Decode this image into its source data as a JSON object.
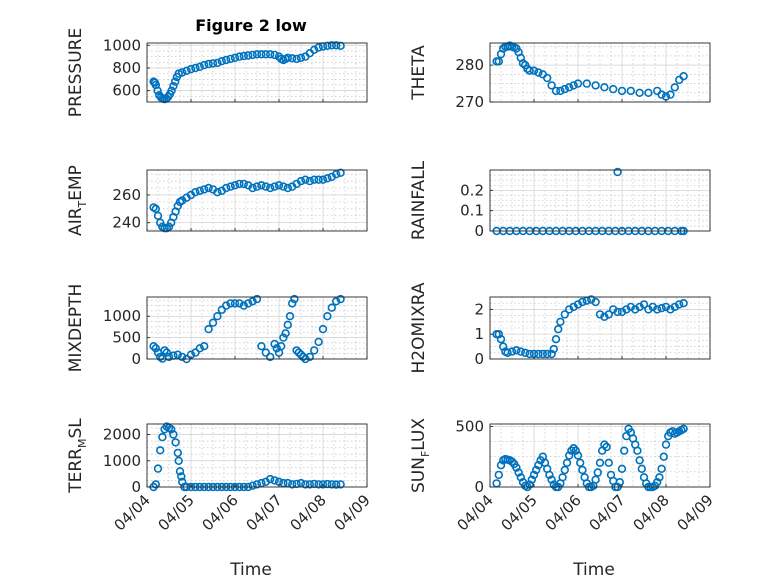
{
  "figure": {
    "title": "Figure 2 low",
    "xlabel": "Time",
    "marker_color": "#0072bd",
    "x_tick_labels": [
      "04/04",
      "04/05",
      "04/06",
      "04/07",
      "04/08",
      "04/09"
    ]
  },
  "chart_data": [
    {
      "type": "scatter",
      "ylabel": "PRESSURE",
      "title": "Figure 2 low",
      "xlim": [
        0,
        5
      ],
      "ylim": [
        500,
        1020
      ],
      "yticks": [
        600,
        800,
        1000
      ],
      "grid": true,
      "x": [
        0.15,
        0.18,
        0.2,
        0.24,
        0.28,
        0.32,
        0.36,
        0.4,
        0.44,
        0.48,
        0.52,
        0.56,
        0.6,
        0.64,
        0.68,
        0.72,
        0.8,
        0.9,
        1.0,
        1.1,
        1.2,
        1.3,
        1.4,
        1.5,
        1.6,
        1.7,
        1.8,
        1.9,
        2.0,
        2.1,
        2.2,
        2.3,
        2.4,
        2.5,
        2.6,
        2.7,
        2.8,
        2.9,
        3.0,
        3.05,
        3.1,
        3.15,
        3.2,
        3.3,
        3.4,
        3.5,
        3.6,
        3.7,
        3.8,
        3.9,
        4.0,
        4.1,
        4.2,
        4.3,
        4.4
      ],
      "y": [
        680,
        670,
        650,
        600,
        560,
        540,
        530,
        525,
        530,
        545,
        570,
        600,
        640,
        680,
        720,
        750,
        760,
        775,
        790,
        800,
        810,
        825,
        835,
        840,
        845,
        860,
        870,
        880,
        890,
        900,
        905,
        910,
        915,
        920,
        920,
        920,
        920,
        915,
        900,
        880,
        870,
        880,
        890,
        885,
        880,
        890,
        900,
        930,
        960,
        980,
        990,
        995,
        1000,
        1000,
        995
      ]
    },
    {
      "type": "scatter",
      "ylabel": "THETA",
      "xlim": [
        0,
        5
      ],
      "ylim": [
        270,
        286
      ],
      "yticks": [
        270,
        280
      ],
      "grid": true,
      "x": [
        0.15,
        0.2,
        0.25,
        0.3,
        0.35,
        0.4,
        0.45,
        0.5,
        0.55,
        0.6,
        0.65,
        0.7,
        0.75,
        0.8,
        0.85,
        0.9,
        1.0,
        1.1,
        1.2,
        1.3,
        1.4,
        1.5,
        1.6,
        1.7,
        1.8,
        1.9,
        2.0,
        2.2,
        2.4,
        2.6,
        2.8,
        3.0,
        3.2,
        3.4,
        3.6,
        3.8,
        3.9,
        4.0,
        4.1,
        4.2,
        4.3,
        4.4
      ],
      "y": [
        281,
        281,
        283,
        284.5,
        285,
        285,
        285.3,
        285,
        284.8,
        284.5,
        283.5,
        282,
        280.5,
        280,
        279,
        278.5,
        278.5,
        278,
        277.5,
        276.5,
        274.5,
        273,
        273,
        273.5,
        274,
        274.5,
        275,
        275,
        274.5,
        274,
        273.5,
        273,
        273,
        272.5,
        272.5,
        273,
        272,
        271.5,
        272,
        274,
        276,
        277
      ]
    },
    {
      "type": "scatter",
      "ylabel": "AIR_TEMP",
      "xlim": [
        0,
        5
      ],
      "ylim": [
        234,
        278
      ],
      "yticks": [
        240,
        260
      ],
      "grid": true,
      "x": [
        0.15,
        0.2,
        0.25,
        0.3,
        0.35,
        0.4,
        0.45,
        0.5,
        0.55,
        0.6,
        0.65,
        0.7,
        0.75,
        0.8,
        0.9,
        1.0,
        1.1,
        1.2,
        1.3,
        1.4,
        1.5,
        1.6,
        1.7,
        1.8,
        1.9,
        2.0,
        2.1,
        2.2,
        2.3,
        2.4,
        2.5,
        2.6,
        2.7,
        2.8,
        2.9,
        3.0,
        3.1,
        3.2,
        3.3,
        3.4,
        3.5,
        3.6,
        3.7,
        3.8,
        3.9,
        4.0,
        4.1,
        4.2,
        4.3,
        4.4
      ],
      "y": [
        251,
        250,
        245,
        240,
        237,
        236,
        236,
        237,
        240,
        244,
        248,
        252,
        255,
        256,
        258,
        260,
        262,
        263,
        264,
        265,
        264,
        262,
        263,
        265,
        266,
        267,
        268,
        268,
        267,
        265,
        266,
        267,
        266,
        265,
        266,
        267,
        266,
        265,
        266,
        268,
        270,
        271,
        270,
        271,
        271,
        271,
        272,
        273,
        275,
        276
      ]
    },
    {
      "type": "scatter",
      "ylabel": "RAINFALL",
      "xlim": [
        0,
        5
      ],
      "ylim": [
        0,
        0.3
      ],
      "yticks": [
        0,
        0.1,
        0.2
      ],
      "grid": true,
      "x": [
        0.15,
        0.3,
        0.45,
        0.6,
        0.75,
        0.9,
        1.05,
        1.2,
        1.35,
        1.5,
        1.65,
        1.8,
        1.95,
        2.1,
        2.25,
        2.4,
        2.55,
        2.7,
        2.85,
        2.9,
        3.0,
        3.15,
        3.3,
        3.45,
        3.6,
        3.75,
        3.9,
        4.05,
        4.2,
        4.35,
        4.4
      ],
      "y": [
        0,
        0,
        0,
        0,
        0,
        0,
        0,
        0,
        0,
        0,
        0,
        0,
        0,
        0,
        0,
        0,
        0,
        0,
        0,
        0.29,
        0,
        0,
        0,
        0,
        0,
        0,
        0,
        0,
        0,
        0,
        0
      ]
    },
    {
      "type": "scatter",
      "ylabel": "MIXDEPTH",
      "xlim": [
        0,
        5
      ],
      "ylim": [
        0,
        1450
      ],
      "yticks": [
        0,
        500,
        1000
      ],
      "grid": true,
      "x": [
        0.15,
        0.2,
        0.25,
        0.3,
        0.35,
        0.4,
        0.45,
        0.5,
        0.6,
        0.7,
        0.8,
        0.9,
        1.0,
        1.1,
        1.2,
        1.3,
        1.4,
        1.5,
        1.6,
        1.7,
        1.8,
        1.9,
        2.0,
        2.1,
        2.2,
        2.3,
        2.4,
        2.5,
        2.6,
        2.7,
        2.8,
        2.9,
        2.95,
        3.0,
        3.05,
        3.1,
        3.15,
        3.2,
        3.25,
        3.3,
        3.35,
        3.4,
        3.45,
        3.5,
        3.55,
        3.6,
        3.7,
        3.8,
        3.9,
        4.0,
        4.1,
        4.2,
        4.3,
        4.4
      ],
      "y": [
        300,
        250,
        150,
        50,
        10,
        200,
        150,
        50,
        80,
        100,
        50,
        0,
        100,
        150,
        250,
        300,
        700,
        850,
        1000,
        1150,
        1250,
        1300,
        1300,
        1300,
        1250,
        1300,
        1350,
        1400,
        300,
        150,
        50,
        350,
        250,
        150,
        300,
        500,
        600,
        800,
        1000,
        1300,
        1400,
        200,
        150,
        100,
        50,
        0,
        50,
        200,
        400,
        700,
        1000,
        1200,
        1350,
        1400
      ]
    },
    {
      "type": "scatter",
      "ylabel": "H2OMIXRA",
      "xlim": [
        0,
        5
      ],
      "ylim": [
        0,
        2.5
      ],
      "yticks": [
        0,
        1,
        2
      ],
      "grid": true,
      "x": [
        0.15,
        0.2,
        0.25,
        0.3,
        0.35,
        0.4,
        0.5,
        0.6,
        0.7,
        0.8,
        0.9,
        1.0,
        1.1,
        1.2,
        1.3,
        1.4,
        1.45,
        1.5,
        1.55,
        1.6,
        1.7,
        1.8,
        1.9,
        2.0,
        2.1,
        2.2,
        2.3,
        2.4,
        2.5,
        2.6,
        2.7,
        2.8,
        2.9,
        3.0,
        3.1,
        3.2,
        3.3,
        3.4,
        3.5,
        3.6,
        3.7,
        3.8,
        3.9,
        4.0,
        4.1,
        4.2,
        4.3,
        4.4
      ],
      "y": [
        1.0,
        1.0,
        0.8,
        0.5,
        0.3,
        0.25,
        0.3,
        0.35,
        0.3,
        0.25,
        0.2,
        0.2,
        0.2,
        0.2,
        0.2,
        0.2,
        0.4,
        0.8,
        1.2,
        1.5,
        1.8,
        2.0,
        2.1,
        2.2,
        2.3,
        2.35,
        2.4,
        2.3,
        1.8,
        1.7,
        1.8,
        2.0,
        1.9,
        1.9,
        2.0,
        2.1,
        2.0,
        2.1,
        2.2,
        2.0,
        2.1,
        2.0,
        2.05,
        2.1,
        2.0,
        2.1,
        2.2,
        2.25
      ]
    },
    {
      "type": "scatter",
      "ylabel": "TERR_MSL",
      "xlim": [
        0,
        5
      ],
      "ylim": [
        0,
        2400
      ],
      "yticks": [
        0,
        1000,
        2000
      ],
      "grid": true,
      "x": [
        0.15,
        0.2,
        0.25,
        0.3,
        0.35,
        0.4,
        0.45,
        0.5,
        0.55,
        0.6,
        0.65,
        0.7,
        0.72,
        0.75,
        0.78,
        0.8,
        0.85,
        0.9,
        1.0,
        1.1,
        1.2,
        1.3,
        1.4,
        1.5,
        1.6,
        1.7,
        1.8,
        1.9,
        2.0,
        2.1,
        2.2,
        2.3,
        2.4,
        2.5,
        2.6,
        2.7,
        2.8,
        2.9,
        3.0,
        3.1,
        3.2,
        3.3,
        3.4,
        3.5,
        3.6,
        3.7,
        3.8,
        3.9,
        4.0,
        4.1,
        4.2,
        4.3,
        4.4
      ],
      "y": [
        0,
        100,
        700,
        1400,
        1900,
        2200,
        2300,
        2250,
        2200,
        2000,
        1700,
        1300,
        1000,
        600,
        400,
        200,
        0,
        0,
        0,
        0,
        0,
        0,
        0,
        0,
        0,
        0,
        0,
        0,
        0,
        0,
        0,
        0,
        50,
        100,
        150,
        200,
        300,
        250,
        200,
        150,
        150,
        100,
        120,
        150,
        100,
        100,
        120,
        100,
        100,
        110,
        100,
        90,
        100
      ]
    },
    {
      "type": "scatter",
      "ylabel": "SUN_FLUX",
      "xlim": [
        0,
        5
      ],
      "ylim": [
        0,
        520
      ],
      "yticks": [
        0,
        500
      ],
      "grid": true,
      "x": [
        0.15,
        0.2,
        0.25,
        0.3,
        0.35,
        0.4,
        0.45,
        0.5,
        0.55,
        0.6,
        0.65,
        0.7,
        0.75,
        0.8,
        0.85,
        0.9,
        0.95,
        1.0,
        1.05,
        1.1,
        1.15,
        1.2,
        1.25,
        1.3,
        1.35,
        1.4,
        1.45,
        1.5,
        1.55,
        1.6,
        1.65,
        1.7,
        1.75,
        1.8,
        1.85,
        1.9,
        1.95,
        2.0,
        2.05,
        2.1,
        2.15,
        2.2,
        2.25,
        2.3,
        2.35,
        2.4,
        2.45,
        2.5,
        2.55,
        2.6,
        2.65,
        2.7,
        2.75,
        2.8,
        2.85,
        2.9,
        2.95,
        3.0,
        3.05,
        3.1,
        3.15,
        3.2,
        3.25,
        3.3,
        3.35,
        3.4,
        3.45,
        3.5,
        3.55,
        3.6,
        3.65,
        3.7,
        3.75,
        3.8,
        3.85,
        3.9,
        3.95,
        4.0,
        4.05,
        4.1,
        4.15,
        4.2,
        4.25,
        4.3,
        4.35,
        4.4
      ],
      "y": [
        30,
        100,
        180,
        220,
        230,
        225,
        220,
        210,
        190,
        160,
        120,
        80,
        40,
        10,
        0,
        20,
        60,
        100,
        140,
        180,
        220,
        250,
        200,
        150,
        100,
        60,
        20,
        0,
        0,
        30,
        80,
        140,
        200,
        260,
        300,
        320,
        300,
        260,
        200,
        140,
        80,
        30,
        0,
        0,
        10,
        60,
        120,
        200,
        300,
        350,
        330,
        200,
        100,
        50,
        0,
        0,
        40,
        150,
        300,
        420,
        480,
        450,
        400,
        350,
        300,
        220,
        150,
        80,
        30,
        0,
        0,
        0,
        10,
        40,
        80,
        150,
        250,
        350,
        420,
        450,
        460,
        440,
        450,
        460,
        470,
        480
      ]
    }
  ]
}
